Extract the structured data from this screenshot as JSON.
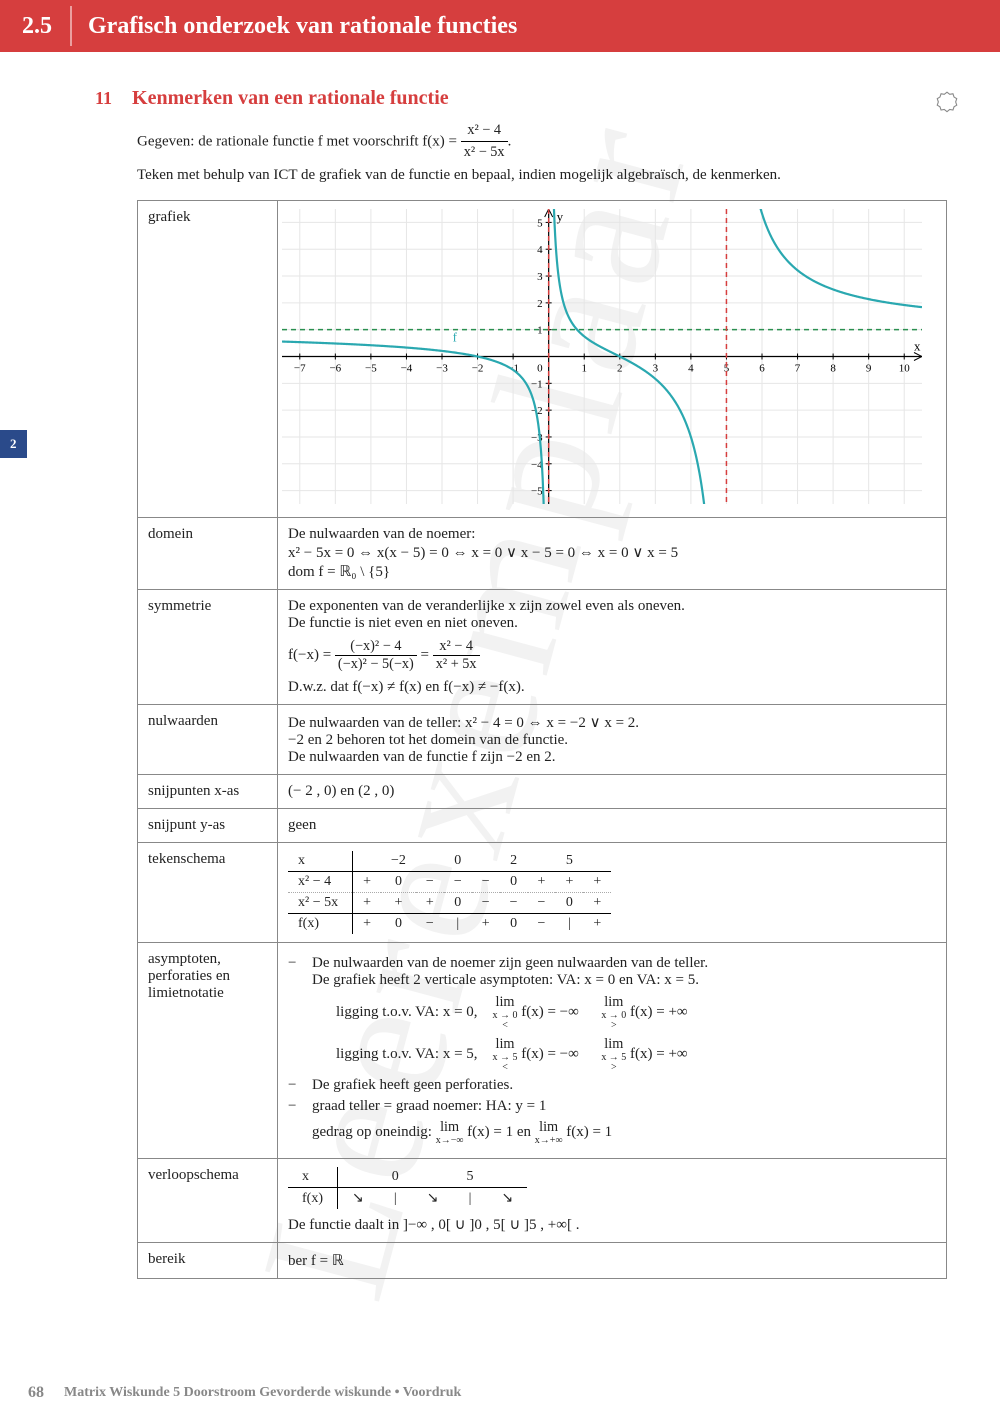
{
  "header": {
    "num": "2.5",
    "title": "Grafisch onderzoek van rationale functies"
  },
  "side_tab": "2",
  "exercise": {
    "num": "11",
    "title": "Kenmerken van een rationale functie",
    "intro1_pre": "Gegeven: de rationale functie f met voorschrift f(x) = ",
    "frac_num": "x² − 4",
    "frac_den": "x² − 5x",
    "intro1_post": ".",
    "intro2": "Teken met behulp van ICT de grafiek van de functie en bepaal, indien mogelijk algebraïsch, de kenmerken."
  },
  "rows": {
    "grafiek": "grafiek",
    "domein": {
      "label": "domein",
      "l1": "De nulwaarden van de noemer:",
      "l2": "x² − 5x = 0 ⇔ x(x − 5) = 0 ⇔ x = 0 ∨ x − 5 = 0 ⇔ x = 0 ∨ x = 5",
      "l3": "dom f = ℝ₀ \\ {5}"
    },
    "symmetrie": {
      "label": "symmetrie",
      "l1": "De exponenten van de veranderlijke x zijn zowel even als oneven.",
      "l2": "De functie is niet even en niet oneven.",
      "eq_lhs": "f(−x) = ",
      "f1_num": "(−x)² − 4",
      "f1_den": "(−x)² − 5(−x)",
      "eq_mid": " = ",
      "f2_num": "x² − 4",
      "f2_den": "x² + 5x",
      "l4": "D.w.z. dat f(−x) ≠ f(x) en f(−x) ≠ −f(x)."
    },
    "nulwaarden": {
      "label": "nulwaarden",
      "l1": "De nulwaarden van de teller: x² − 4 = 0 ⇔ x = −2 ∨ x = 2.",
      "l2": "−2 en 2 behoren tot het domein van de functie.",
      "l3": "De nulwaarden van de functie f zijn −2 en 2."
    },
    "snij_x": {
      "label": "snijpunten x-as",
      "val": "(− 2 , 0) en (2 , 0)"
    },
    "snij_y": {
      "label": "snijpunt y-as",
      "val": "geen"
    },
    "teken": {
      "label": "tekenschema",
      "h": [
        "x",
        "",
        "−2",
        "",
        "0",
        "",
        "2",
        "",
        "5",
        ""
      ],
      "r1": [
        "x² − 4",
        "+",
        "0",
        "−",
        "−",
        "−",
        "0",
        "+",
        "+",
        "+"
      ],
      "r2": [
        "x² − 5x",
        "+",
        "+",
        "+",
        "0",
        "−",
        "−",
        "−",
        "0",
        "+"
      ],
      "r3": [
        "f(x)",
        "+",
        "0",
        "−",
        "|",
        "+",
        "0",
        "−",
        "|",
        "+"
      ]
    },
    "asymp": {
      "label1": "asymptoten,",
      "label2": "perforaties en",
      "label3": "limietnotatie",
      "b1a": "De nulwaarden van de noemer zijn geen nulwaarden van de teller.",
      "b1b": "De grafiek heeft 2 verticale asymptoten: VA: x = 0 en VA: x = 5.",
      "lig0": "ligging t.o.v. VA: x = 0,",
      "lig5": "ligging t.o.v. VA: x = 5,",
      "lim_txt": "lim",
      "approach0l": "x → 0",
      "dir0l": "<",
      "approach0r": "x → 0",
      "dir0r": ">",
      "approach5l": "x → 5",
      "dir5l": "<",
      "approach5r": "x → 5",
      "dir5r": ">",
      "fx_neginf": " f(x) = −∞",
      "fx_posinf": " f(x) = +∞",
      "b2": "De grafiek heeft geen perforaties.",
      "b3a": "graad teller = graad noemer: HA: y = 1",
      "b3b_pre": "gedrag op oneindig: ",
      "approach_mi": "x→−∞",
      "approach_pi": "x→+∞",
      "fx1": " f(x) = 1",
      "en": " en "
    },
    "verloop": {
      "label": "verloopschema",
      "h": [
        "x",
        "",
        "0",
        "",
        "5",
        ""
      ],
      "r": [
        "f(x)",
        "↘",
        "|",
        "↘",
        "|",
        "↘"
      ],
      "text": "De functie daalt in ]−∞ , 0[ ∪ ]0 , 5[ ∪ ]5 , +∞[ ."
    },
    "bereik": {
      "label": "bereik",
      "val": "ber f = ℝ"
    }
  },
  "graph": {
    "xmin": -7.5,
    "xmax": 10.5,
    "ymin": -5.5,
    "ymax": 5.5,
    "curve_color": "#2aa8b0",
    "asymptote_color": "#d63e3e",
    "ha_color": "#2a9050",
    "grid_color": "#e6e6e6"
  },
  "footer": {
    "page": "68",
    "text": "Matrix Wiskunde 5 Doorstroom Gevorderde wiskunde • Voordruk"
  },
  "watermark": "Leerexemplaar"
}
